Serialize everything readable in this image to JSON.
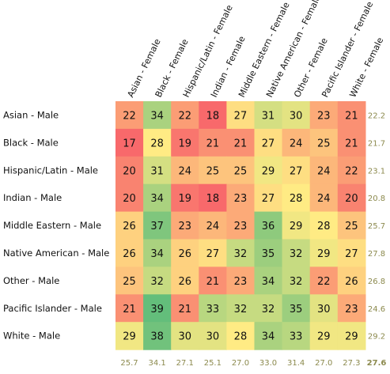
{
  "chart_data": {
    "type": "heatmap",
    "columns": [
      "Asian - Female",
      "Black - Female",
      "Hispanic/Latin - Female",
      "Indian - Female",
      "Middle Eastern - Female",
      "Native American - Female",
      "Other - Female",
      "Pacific Islander - Female",
      "White - Female"
    ],
    "rows": [
      "Asian - Male",
      "Black - Male",
      "Hispanic/Latin - Male",
      "Indian - Male",
      "Middle Eastern - Male",
      "Native American - Male",
      "Other - Male",
      "Pacific Islander - Male",
      "White - Male"
    ],
    "values": [
      [
        22,
        34,
        22,
        18,
        27,
        31,
        30,
        23,
        21
      ],
      [
        17,
        28,
        19,
        21,
        21,
        27,
        24,
        25,
        21
      ],
      [
        20,
        31,
        24,
        25,
        25,
        29,
        27,
        24,
        22
      ],
      [
        20,
        34,
        19,
        18,
        23,
        27,
        28,
        24,
        20
      ],
      [
        26,
        37,
        23,
        24,
        23,
        36,
        29,
        28,
        25
      ],
      [
        26,
        34,
        26,
        27,
        32,
        35,
        32,
        29,
        27
      ],
      [
        25,
        32,
        26,
        21,
        23,
        34,
        32,
        22,
        26
      ],
      [
        21,
        39,
        21,
        33,
        32,
        32,
        35,
        30,
        23
      ],
      [
        29,
        38,
        30,
        30,
        28,
        34,
        33,
        29,
        29
      ]
    ],
    "row_averages": [
      "22.2",
      "21.7",
      "23.1",
      "20.8",
      "25.7",
      "27.8",
      "26.8",
      "24.6",
      "29.2"
    ],
    "column_averages": [
      "25.7",
      "34.1",
      "27.1",
      "25.1",
      "27.0",
      "33.0",
      "31.4",
      "27.0",
      "27.3"
    ],
    "overall_average": "27.6",
    "color_scale": {
      "min": 18,
      "mid": 28,
      "max": 39,
      "low_color": "#f8696b",
      "mid_color": "#ffeb84",
      "high_color": "#63be7b"
    },
    "average_text_color": "#8c8a4e"
  }
}
